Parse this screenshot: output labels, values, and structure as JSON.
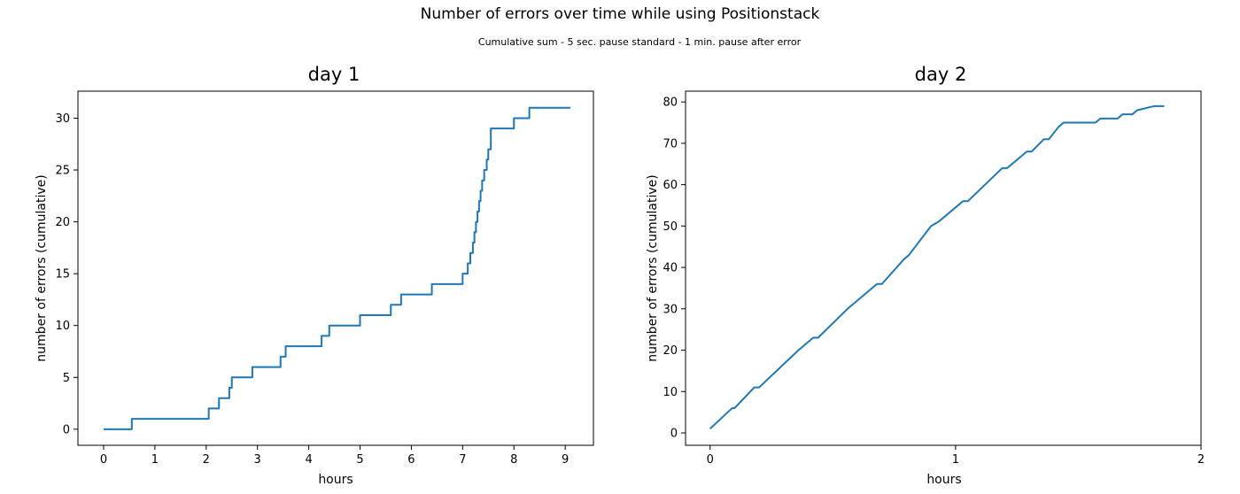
{
  "figure": {
    "title": "Number of errors over time while using Positionstack",
    "subtitle": "Cumulative sum - 5 sec. pause standard - 1 min. pause after error"
  },
  "colors": {
    "line": "#1f77b4",
    "axis": "#000000"
  },
  "chart_data": [
    {
      "type": "line",
      "title": "day 1",
      "xlabel": "hours",
      "ylabel": "number of errors (cumulative)",
      "xlim": [
        -0.5,
        9.55
      ],
      "ylim": [
        -1.55,
        32.6
      ],
      "xticks": [
        0,
        1,
        2,
        3,
        4,
        5,
        6,
        7,
        8,
        9
      ],
      "yticks": [
        0,
        5,
        10,
        15,
        20,
        25,
        30
      ],
      "grid": false,
      "step": true,
      "series": [
        {
          "x": [
            0,
            0.55,
            2.05,
            2.25,
            2.45,
            2.5,
            2.9,
            3.45,
            3.55,
            4.25,
            4.4,
            5.0,
            5.6,
            5.8,
            6.4,
            7.0,
            7.1,
            7.15,
            7.2,
            7.23,
            7.26,
            7.29,
            7.32,
            7.35,
            7.38,
            7.42,
            7.47,
            7.5,
            7.55,
            8.0,
            8.3,
            9.1
          ],
          "y": [
            0,
            1,
            2,
            3,
            4,
            5,
            6,
            7,
            8,
            9,
            10,
            11,
            12,
            13,
            14,
            15,
            16,
            17,
            18,
            19,
            20,
            21,
            22,
            23,
            24,
            25,
            26,
            27,
            29,
            30,
            31,
            31
          ]
        }
      ]
    },
    {
      "type": "line",
      "title": "day 2",
      "xlabel": "hours",
      "ylabel": "number of errors (cumulative)",
      "xlim": [
        -0.1,
        2.0
      ],
      "ylim": [
        -3,
        82.6
      ],
      "xticks": [
        0,
        1,
        2
      ],
      "yticks": [
        0,
        10,
        20,
        30,
        40,
        50,
        60,
        70,
        80
      ],
      "grid": false,
      "step": false,
      "series": [
        {
          "x": [
            0,
            0.09,
            0.1,
            0.18,
            0.2,
            0.36,
            0.38,
            0.42,
            0.44,
            0.56,
            0.58,
            0.68,
            0.7,
            0.79,
            0.81,
            0.9,
            0.93,
            1.03,
            1.05,
            1.19,
            1.21,
            1.29,
            1.31,
            1.36,
            1.38,
            1.42,
            1.44,
            1.57,
            1.59,
            1.66,
            1.68,
            1.72,
            1.74,
            1.81,
            1.85
          ],
          "y": [
            1,
            6,
            6,
            11,
            11,
            20,
            21,
            23,
            23,
            30,
            31,
            36,
            36,
            42,
            43,
            50,
            51,
            56,
            56,
            64,
            64,
            68,
            68,
            71,
            71,
            74,
            75,
            75,
            76,
            76,
            77,
            77,
            78,
            79,
            79
          ]
        }
      ]
    }
  ]
}
